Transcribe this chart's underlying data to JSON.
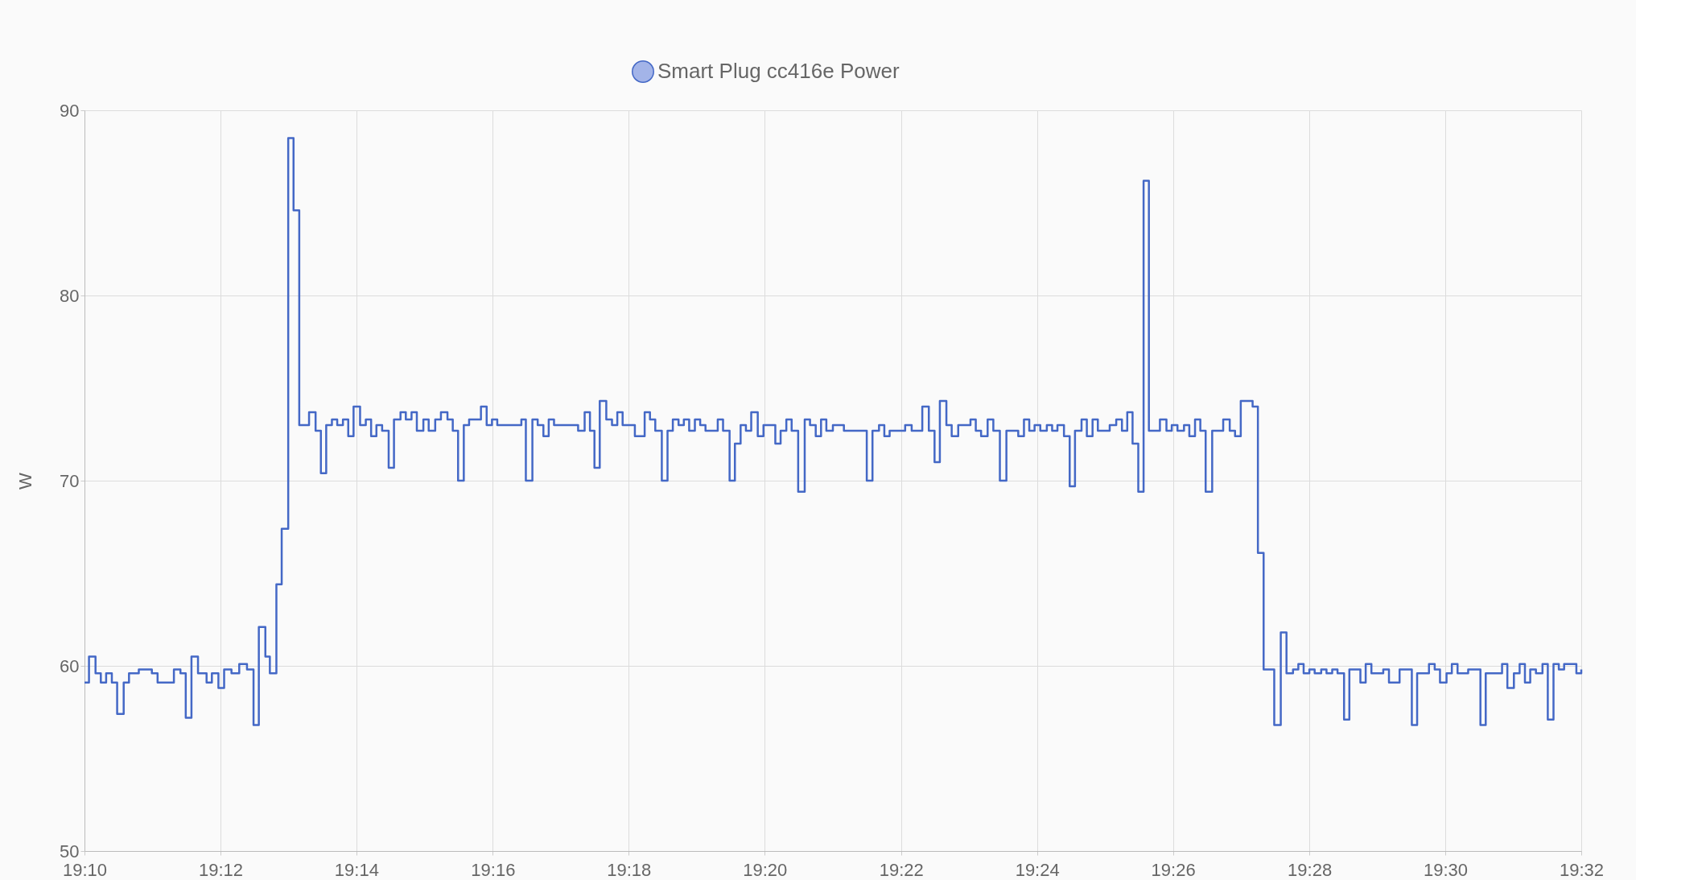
{
  "chart_data": {
    "type": "step",
    "ylabel": "W",
    "legend": "top",
    "grid": true,
    "marker": "none",
    "line_style": "solid",
    "xlim": [
      19.1667,
      19.5333
    ],
    "ylim": [
      50,
      90
    ],
    "yticks": [
      50,
      60,
      70,
      80,
      90
    ],
    "xticks": [
      {
        "value": 19.1667,
        "label": "19:10"
      },
      {
        "value": 19.2,
        "label": "19:12"
      },
      {
        "value": 19.2333,
        "label": "19:14"
      },
      {
        "value": 19.2667,
        "label": "19:16"
      },
      {
        "value": 19.3,
        "label": "19:18"
      },
      {
        "value": 19.3333,
        "label": "19:20"
      },
      {
        "value": 19.3667,
        "label": "19:22"
      },
      {
        "value": 19.4,
        "label": "19:24"
      },
      {
        "value": 19.4333,
        "label": "19:26"
      },
      {
        "value": 19.4667,
        "label": "19:28"
      },
      {
        "value": 19.5,
        "label": "19:30"
      },
      {
        "value": 19.5333,
        "label": "19:32"
      }
    ],
    "series": [
      {
        "name": "Smart Plug cc416e Power",
        "color": "#4468c6",
        "x": [
          19.1667,
          19.1678,
          19.1694,
          19.1707,
          19.172,
          19.1734,
          19.1747,
          19.1763,
          19.1776,
          19.18,
          19.1832,
          19.1846,
          19.1886,
          19.1902,
          19.1915,
          19.1929,
          19.1945,
          19.1966,
          19.1979,
          19.1995,
          19.2009,
          19.2027,
          19.2046,
          19.2065,
          19.2081,
          19.2094,
          19.211,
          19.2121,
          19.2137,
          19.215,
          19.2166,
          19.2179,
          19.2193,
          19.2217,
          19.2233,
          19.2246,
          19.2259,
          19.2273,
          19.2286,
          19.23,
          19.2313,
          19.2326,
          19.2342,
          19.2356,
          19.2369,
          19.2382,
          19.2396,
          19.2412,
          19.2425,
          19.2441,
          19.2454,
          19.2468,
          19.2481,
          19.2497,
          19.251,
          19.2526,
          19.254,
          19.2556,
          19.2569,
          19.2582,
          19.2596,
          19.2609,
          19.2638,
          19.2652,
          19.2665,
          19.2678,
          19.2737,
          19.2748,
          19.2764,
          19.2777,
          19.2791,
          19.2804,
          19.2817,
          19.2876,
          19.2892,
          19.2905,
          19.2916,
          19.2929,
          19.2945,
          19.2959,
          19.2972,
          19.2985,
          19.3015,
          19.3039,
          19.3052,
          19.3065,
          19.3081,
          19.3095,
          19.3108,
          19.3122,
          19.3135,
          19.3148,
          19.3162,
          19.3175,
          19.3188,
          19.3218,
          19.3231,
          19.3247,
          19.326,
          19.3274,
          19.3287,
          19.33,
          19.3316,
          19.333,
          19.3359,
          19.3372,
          19.3386,
          19.3399,
          19.3415,
          19.3431,
          19.3444,
          19.3458,
          19.3471,
          19.3484,
          19.35,
          19.3527,
          19.3583,
          19.3597,
          19.3613,
          19.3626,
          19.3639,
          19.3677,
          19.3693,
          19.3719,
          19.3735,
          19.3749,
          19.3762,
          19.3778,
          19.3791,
          19.3807,
          19.3837,
          19.385,
          19.3863,
          19.3879,
          19.3893,
          19.3909,
          19.3925,
          19.3954,
          19.3968,
          19.3981,
          19.3994,
          19.4008,
          19.4024,
          19.4037,
          19.405,
          19.4066,
          19.408,
          19.4093,
          19.4109,
          19.4122,
          19.4136,
          19.4149,
          19.4178,
          19.4194,
          19.4208,
          19.4221,
          19.4234,
          19.4248,
          19.4261,
          19.4274,
          19.4301,
          19.4317,
          19.433,
          19.4344,
          19.436,
          19.4373,
          19.4387,
          19.44,
          19.4413,
          19.4429,
          19.4456,
          19.4472,
          19.4485,
          19.4499,
          19.4528,
          19.4541,
          19.4555,
          19.4581,
          19.4597,
          19.4611,
          19.4627,
          19.464,
          19.4653,
          19.4667,
          19.468,
          19.4696,
          19.4709,
          19.4723,
          19.4736,
          19.4752,
          19.4765,
          19.4792,
          19.4805,
          19.4819,
          19.4848,
          19.4862,
          19.4888,
          19.4918,
          19.4931,
          19.496,
          19.4974,
          19.4987,
          19.5003,
          19.5016,
          19.503,
          19.5056,
          19.5086,
          19.5099,
          19.5139,
          19.5152,
          19.5168,
          19.5182,
          19.5195,
          19.5208,
          19.5222,
          19.5238,
          19.5251,
          19.5265,
          19.5278,
          19.5291,
          19.5321,
          19.5333
        ],
        "values": [
          59.1,
          60.5,
          59.6,
          59.1,
          59.6,
          59.1,
          57.4,
          59.1,
          59.6,
          59.8,
          59.6,
          59.1,
          59.8,
          59.6,
          57.2,
          60.5,
          59.6,
          59.1,
          59.6,
          58.8,
          59.8,
          59.6,
          60.1,
          59.8,
          56.8,
          62.1,
          60.5,
          59.6,
          64.4,
          67.4,
          88.5,
          84.6,
          73.0,
          73.7,
          72.7,
          70.4,
          73.0,
          73.3,
          73.0,
          73.3,
          72.4,
          74.0,
          73.0,
          73.3,
          72.4,
          73.0,
          72.7,
          70.7,
          73.3,
          73.7,
          73.3,
          73.7,
          72.7,
          73.3,
          72.7,
          73.3,
          73.7,
          73.3,
          72.7,
          70.0,
          73.0,
          73.3,
          74.0,
          73.0,
          73.3,
          73.0,
          73.3,
          70.0,
          73.3,
          73.0,
          72.4,
          73.3,
          73.0,
          72.7,
          73.7,
          72.7,
          70.7,
          74.3,
          73.3,
          73.0,
          73.7,
          73.0,
          72.4,
          73.7,
          73.3,
          72.7,
          70.0,
          72.7,
          73.3,
          73.0,
          73.3,
          72.7,
          73.3,
          73.0,
          72.7,
          73.3,
          72.7,
          70.0,
          72.0,
          73.0,
          72.7,
          73.7,
          72.4,
          73.0,
          72.0,
          72.7,
          73.3,
          72.7,
          69.4,
          73.3,
          73.0,
          72.4,
          73.3,
          72.7,
          73.0,
          72.7,
          70.0,
          72.7,
          73.0,
          72.4,
          72.7,
          73.0,
          72.7,
          74.0,
          72.7,
          71.0,
          74.3,
          73.0,
          72.4,
          73.0,
          73.3,
          72.7,
          72.4,
          73.3,
          72.7,
          70.0,
          72.7,
          72.4,
          73.3,
          72.7,
          73.0,
          72.7,
          73.0,
          72.7,
          73.0,
          72.4,
          69.7,
          72.7,
          73.3,
          72.4,
          73.3,
          72.7,
          73.0,
          73.3,
          72.7,
          73.7,
          72.0,
          69.4,
          86.2,
          72.7,
          73.3,
          72.7,
          73.0,
          72.7,
          73.0,
          72.4,
          73.3,
          72.7,
          69.4,
          72.7,
          73.3,
          72.7,
          72.4,
          74.3,
          74.0,
          66.1,
          59.8,
          56.8,
          61.8,
          59.6,
          59.8,
          60.1,
          59.6,
          59.8,
          59.6,
          59.8,
          59.6,
          59.8,
          59.6,
          57.1,
          59.8,
          59.1,
          60.1,
          59.6,
          59.8,
          59.1,
          59.8,
          56.8,
          59.6,
          60.1,
          59.8,
          59.1,
          59.6,
          60.1,
          59.6,
          59.8,
          56.8,
          59.6,
          60.1,
          58.8,
          59.6,
          60.1,
          59.1,
          59.8,
          59.6,
          60.1,
          57.1,
          60.1,
          59.8,
          60.1,
          59.6,
          59.8
        ]
      }
    ]
  }
}
